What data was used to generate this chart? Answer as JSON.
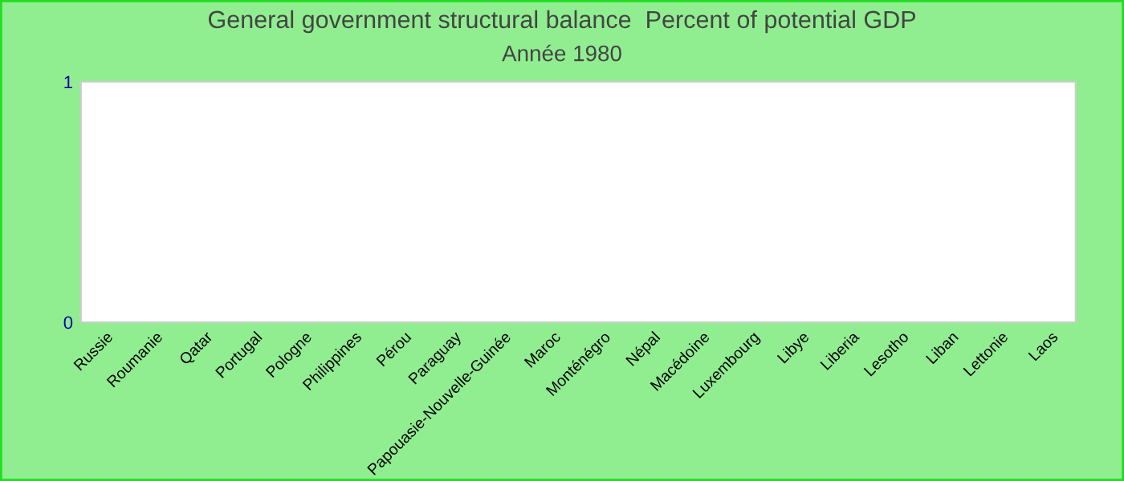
{
  "chart_data": {
    "type": "bar",
    "title": "General government structural balance  Percent of potential GDP",
    "subtitle": "Année 1980",
    "categories": [
      "Russie",
      "Roumanie",
      "Qatar",
      "Portugal",
      "Pologne",
      "Philippines",
      "Pérou",
      "Paraguay",
      "Papouasie-Nouvelle-Guinée",
      "Maroc",
      "Monténégro",
      "Népal",
      "Macédoine",
      "Luxembourg",
      "Libye",
      "Liberia",
      "Lesotho",
      "Liban",
      "Lettonie",
      "Laos"
    ],
    "values": [
      null,
      null,
      null,
      null,
      null,
      null,
      null,
      null,
      null,
      null,
      null,
      null,
      null,
      null,
      null,
      null,
      null,
      null,
      null,
      null
    ],
    "ylim": [
      0,
      1
    ],
    "yticks": [
      0,
      1
    ],
    "grid": false
  }
}
